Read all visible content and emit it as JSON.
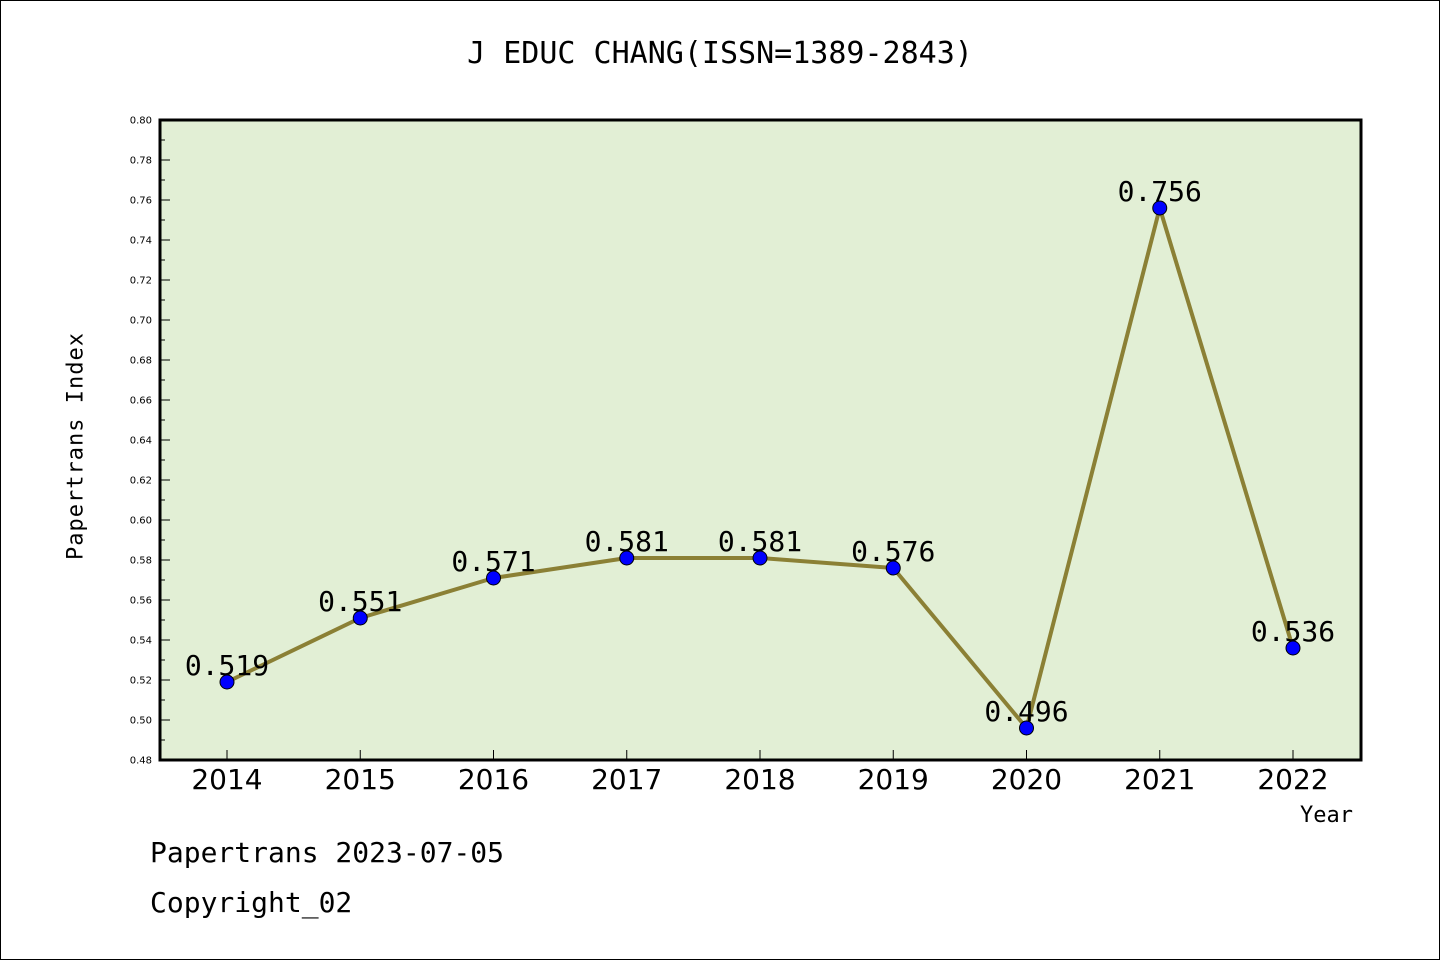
{
  "chart_data": {
    "type": "line",
    "title": "J EDUC CHANG(ISSN=1389-2843)",
    "xlabel": "Year",
    "ylabel": "Papertrans Index",
    "categories": [
      "2014",
      "2015",
      "2016",
      "2017",
      "2018",
      "2019",
      "2020",
      "2021",
      "2022"
    ],
    "series": [
      {
        "values": [
          0.519,
          0.551,
          0.571,
          0.581,
          0.581,
          0.576,
          0.496,
          0.756,
          0.536
        ]
      }
    ],
    "data_labels": [
      "0.519",
      "0.551",
      "0.571",
      "0.581",
      "0.581",
      "0.576",
      "0.496",
      "0.756",
      "0.536"
    ],
    "ylim": [
      0.48,
      0.8
    ],
    "yticks": [
      "0.48",
      "0.50",
      "0.52",
      "0.54",
      "0.56",
      "0.58",
      "0.60",
      "0.62",
      "0.64",
      "0.66",
      "0.68",
      "0.70",
      "0.72",
      "0.74",
      "0.76",
      "0.78",
      "0.80"
    ],
    "grid": false,
    "colors": {
      "plot_background": "#e2efd5",
      "line": "#8b8035",
      "marker": "#0000ff"
    }
  },
  "footer": {
    "line1": "Papertrans 2023-07-05",
    "line2": "Copyright_02"
  }
}
